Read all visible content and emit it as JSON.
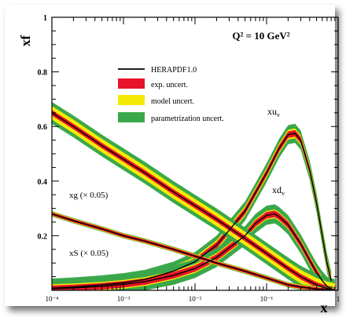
{
  "chart_data": {
    "type": "line",
    "x_scale": "log",
    "xlabel": "x",
    "ylabel": "xf",
    "xlim": [
      0.0001,
      1
    ],
    "ylim": [
      0,
      1
    ],
    "x_tick_labels": [
      "10⁻⁴",
      "10⁻³",
      "10⁻²",
      "10⁻¹",
      "1"
    ],
    "y_tick_labels": [
      "0.2",
      "0.4",
      "0.6",
      "0.8",
      "1"
    ],
    "y_tick_values": [
      0.2,
      0.4,
      0.6,
      0.8,
      1.0
    ],
    "title": "Q² = 10 GeV²",
    "legend": {
      "position": "top-center",
      "entries": [
        {
          "label": "HERAPDF1.0",
          "kind": "line",
          "color": "#000000"
        },
        {
          "label": "exp. uncert.",
          "kind": "band",
          "color": "#e8132b"
        },
        {
          "label": "model uncert.",
          "kind": "band",
          "color": "#f5ea06"
        },
        {
          "label": "parametrization uncert.",
          "kind": "band",
          "color": "#3aa84a"
        }
      ]
    },
    "series": [
      {
        "name": "xuᵥ",
        "label_main": "xu",
        "label_sub": "v",
        "x": [
          0.0001,
          0.0002,
          0.0005,
          0.001,
          0.002,
          0.005,
          0.01,
          0.02,
          0.05,
          0.1,
          0.15,
          0.2,
          0.25,
          0.3,
          0.4,
          0.5,
          0.6,
          0.7,
          0.8
        ],
        "y": [
          0.008,
          0.012,
          0.02,
          0.028,
          0.04,
          0.07,
          0.105,
          0.165,
          0.29,
          0.43,
          0.52,
          0.57,
          0.575,
          0.55,
          0.44,
          0.32,
          0.2,
          0.1,
          0.035
        ],
        "band": {
          "exp": 0.012,
          "model": 0.018,
          "param": 0.035
        }
      },
      {
        "name": "xdᵥ",
        "label_main": "xd",
        "label_sub": "v",
        "x": [
          0.0001,
          0.0002,
          0.0005,
          0.001,
          0.002,
          0.005,
          0.01,
          0.02,
          0.05,
          0.07,
          0.1,
          0.13,
          0.15,
          0.2,
          0.3,
          0.4,
          0.5,
          0.6,
          0.7,
          0.8
        ],
        "y": [
          0.006,
          0.009,
          0.015,
          0.022,
          0.032,
          0.055,
          0.08,
          0.12,
          0.2,
          0.245,
          0.275,
          0.28,
          0.27,
          0.24,
          0.17,
          0.11,
          0.065,
          0.035,
          0.015,
          0.005
        ],
        "band": {
          "exp": 0.012,
          "model": 0.016,
          "param": 0.035
        }
      },
      {
        "name": "xg (× 0.05)",
        "x": [
          0.0001,
          0.0002,
          0.0005,
          0.001,
          0.002,
          0.005,
          0.01,
          0.02,
          0.05,
          0.1,
          0.2,
          0.3,
          0.5,
          0.7,
          0.9
        ],
        "y": [
          0.65,
          0.6,
          0.53,
          0.48,
          0.43,
          0.36,
          0.31,
          0.26,
          0.19,
          0.135,
          0.08,
          0.05,
          0.02,
          0.007,
          0.001
        ],
        "band": {
          "exp": 0.01,
          "model": 0.025,
          "param": 0.04
        }
      },
      {
        "name": "xS (× 0.05)",
        "x": [
          0.0001,
          0.0002,
          0.0005,
          0.001,
          0.002,
          0.005,
          0.01,
          0.02,
          0.05,
          0.1,
          0.2,
          0.3,
          0.5,
          0.7,
          0.9
        ],
        "y": [
          0.28,
          0.255,
          0.225,
          0.2,
          0.18,
          0.15,
          0.125,
          0.1,
          0.07,
          0.045,
          0.02,
          0.012,
          0.005,
          0.002,
          0.0005
        ],
        "band": {
          "exp": 0.006,
          "model": 0.008,
          "param": 0.01
        }
      }
    ]
  }
}
